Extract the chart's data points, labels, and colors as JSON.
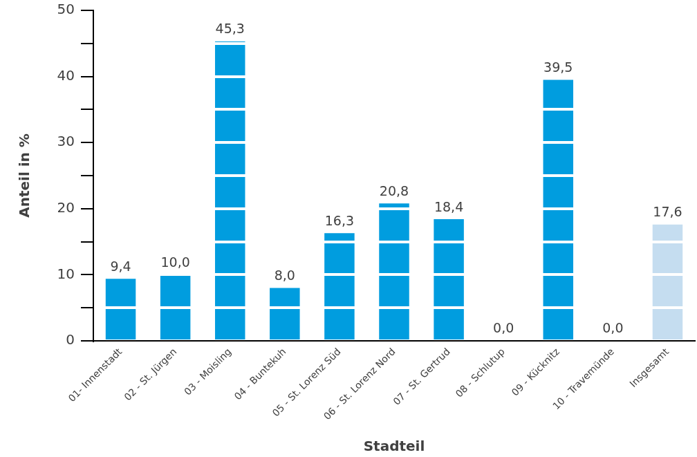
{
  "chart_data": {
    "type": "bar",
    "xlabel": "Stadteil",
    "ylabel": "Anteil in %",
    "categories": [
      "01- Innenstadt",
      "02 - St. Jürgen",
      "03 - Moisling",
      "04 - Buntekuh",
      "05 - St. Lorenz Süd",
      "06 - St. Lorenz Nord",
      "07 - St. Gertrud",
      "08 - Schlutup",
      "09 - Kücknitz",
      "10 - Travemünde",
      "Insgesamt"
    ],
    "values": [
      9.4,
      10.0,
      45.3,
      8.0,
      16.3,
      20.8,
      18.4,
      0.0,
      39.5,
      0.0,
      17.6
    ],
    "colors": [
      "#009ddf",
      "#009ddf",
      "#009ddf",
      "#009ddf",
      "#009ddf",
      "#009ddf",
      "#009ddf",
      "#009ddf",
      "#009ddf",
      "#009ddf",
      "#c5ddf0"
    ],
    "value_labels": [
      "9,4",
      "10,0",
      "45,3",
      "8,0",
      "16,3",
      "20,8",
      "18,4",
      "0,0",
      "39,5",
      "0,0",
      "17,6"
    ],
    "ylim": [
      0,
      50
    ],
    "yticks": [
      0,
      {
        "value": 5,
        "label": null
      },
      10,
      {
        "value": 15,
        "label": null
      },
      20,
      {
        "value": 25,
        "label": null
      },
      30,
      {
        "value": 35,
        "label": null
      },
      40,
      {
        "value": 45,
        "label": null
      },
      50
    ],
    "grid": "y"
  }
}
